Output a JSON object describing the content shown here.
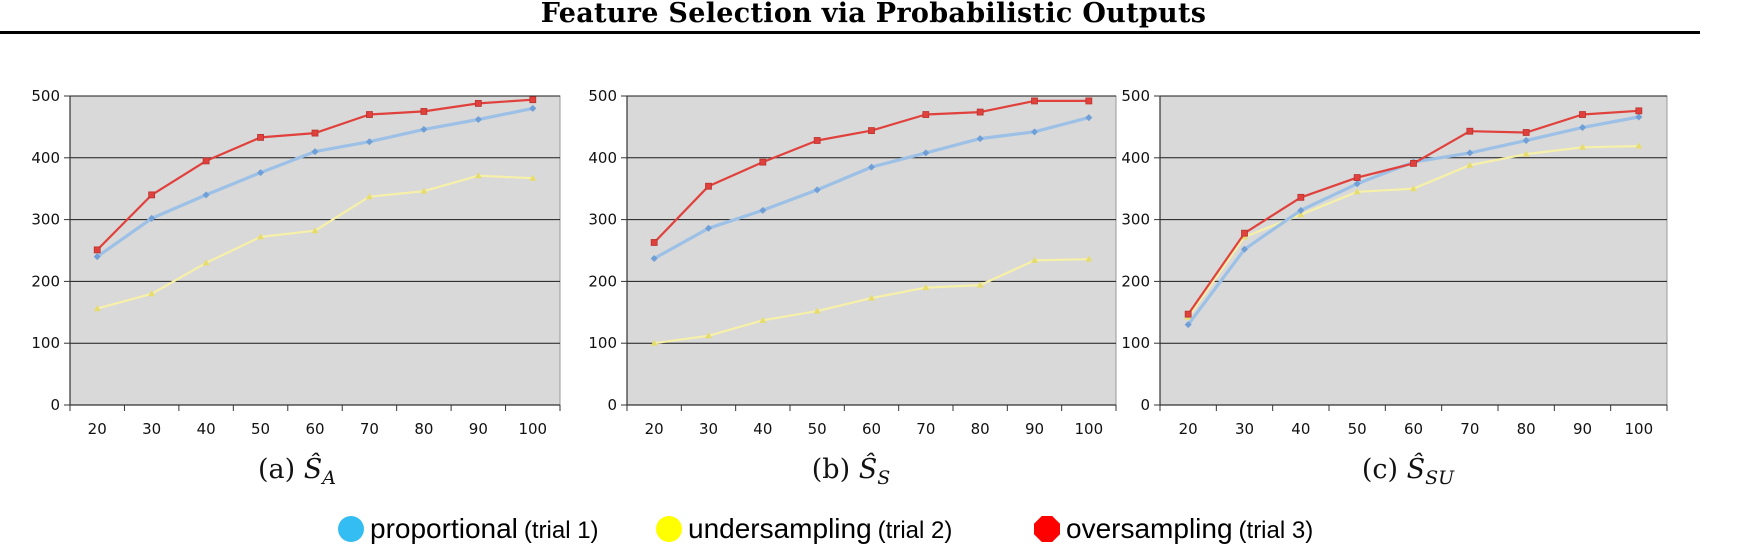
{
  "page": {
    "title": "Feature Selection via Probabilistic Outputs"
  },
  "legend": {
    "items": [
      {
        "name": "proportional",
        "trial": "(trial 1)",
        "color": "#34bdf2",
        "marker": "circle"
      },
      {
        "name": "undersampling",
        "trial": "(trial 2)",
        "color": "#ffff00",
        "marker": "circle"
      },
      {
        "name": "oversampling",
        "trial": "(trial 3)",
        "color": "#ff0000",
        "marker": "octagon"
      }
    ]
  },
  "colors": {
    "plot_bg": "#d9d9d9",
    "proportional": "#9cc0e6",
    "undersampling": "#f6f0a8",
    "oversampling": "#e0413c"
  },
  "chart_data": [
    {
      "type": "line",
      "caption_label": "(a)",
      "caption_symbol": "Ŝ",
      "caption_subscript": "A",
      "categories": [
        "20",
        "30",
        "40",
        "50",
        "60",
        "70",
        "80",
        "90",
        "100"
      ],
      "yticks": [
        "0",
        "100",
        "200",
        "300",
        "400",
        "500"
      ],
      "ylim": [
        0,
        500
      ],
      "grid": true,
      "series": [
        {
          "name": "proportional",
          "values": [
            240,
            302,
            340,
            376,
            410,
            426,
            446,
            462,
            480
          ]
        },
        {
          "name": "undersampling",
          "values": [
            156,
            180,
            230,
            272,
            282,
            337,
            346,
            371,
            367
          ]
        },
        {
          "name": "oversampling",
          "values": [
            251,
            340,
            395,
            433,
            440,
            470,
            475,
            488,
            494
          ]
        }
      ]
    },
    {
      "type": "line",
      "caption_label": "(b)",
      "caption_symbol": "Ŝ",
      "caption_subscript": "S",
      "categories": [
        "20",
        "30",
        "40",
        "50",
        "60",
        "70",
        "80",
        "90",
        "100"
      ],
      "yticks": [
        "0",
        "100",
        "200",
        "300",
        "400",
        "500"
      ],
      "ylim": [
        0,
        500
      ],
      "grid": true,
      "series": [
        {
          "name": "proportional",
          "values": [
            237,
            286,
            315,
            348,
            385,
            408,
            431,
            442,
            465
          ]
        },
        {
          "name": "undersampling",
          "values": [
            100,
            112,
            137,
            152,
            173,
            190,
            194,
            234,
            236
          ]
        },
        {
          "name": "oversampling",
          "values": [
            263,
            354,
            393,
            428,
            444,
            470,
            474,
            492,
            492
          ]
        }
      ]
    },
    {
      "type": "line",
      "caption_label": "(c)",
      "caption_symbol": "Ŝ",
      "caption_subscript": "SU",
      "categories": [
        "20",
        "30",
        "40",
        "50",
        "60",
        "70",
        "80",
        "90",
        "100"
      ],
      "yticks": [
        "0",
        "100",
        "200",
        "300",
        "400",
        "500"
      ],
      "ylim": [
        0,
        500
      ],
      "grid": true,
      "series": [
        {
          "name": "proportional",
          "values": [
            130,
            252,
            315,
            358,
            393,
            408,
            428,
            449,
            466
          ]
        },
        {
          "name": "undersampling",
          "values": [
            142,
            272,
            308,
            345,
            350,
            388,
            406,
            417,
            419
          ]
        },
        {
          "name": "oversampling",
          "values": [
            147,
            278,
            336,
            368,
            391,
            443,
            441,
            470,
            476
          ]
        }
      ]
    }
  ]
}
